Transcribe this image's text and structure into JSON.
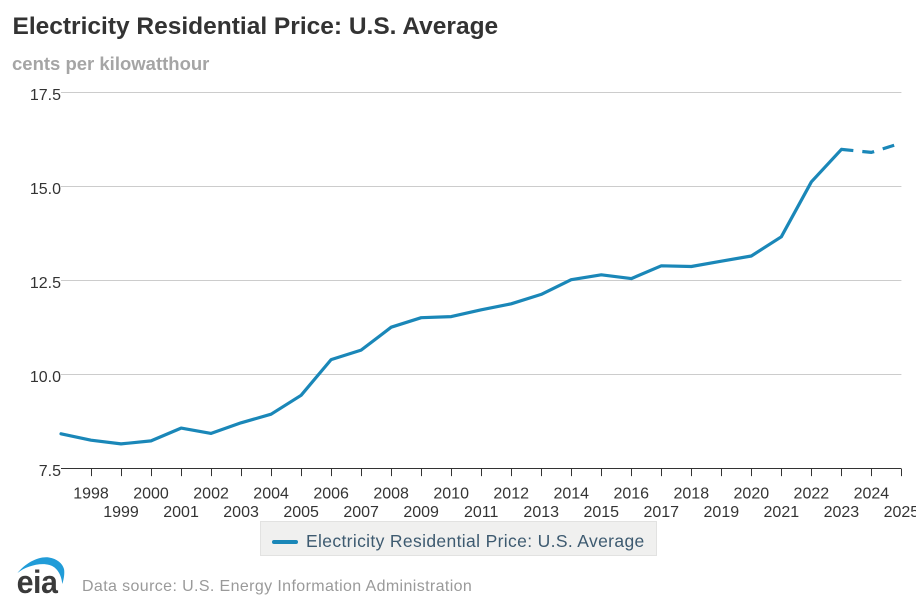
{
  "title": "Electricity Residential Price: U.S. Average",
  "subtitle": "cents per kilowatthour",
  "legend": {
    "label": "Electricity Residential Price: U.S. Average"
  },
  "footer": {
    "logo_text": "eia",
    "source_text": "Data source: U.S. Energy Information Administration"
  },
  "colors": {
    "line": "#1a87b8",
    "grid": "#cccccc",
    "axis": "#333333",
    "tick": "#333333",
    "axis_label": "#333333",
    "title": "#333333",
    "subtitle": "#a5a5a5",
    "legend_text": "#3d5a70",
    "legend_bg": "#f0f0ef",
    "legend_border": "#e2e2e1",
    "footer_text": "#9a9a9a",
    "logo_blue": "#219cd8",
    "logo_text": "#3a3a3a"
  },
  "chart_data": {
    "type": "line",
    "title": "Electricity Residential Price: U.S. Average",
    "xlabel": "",
    "ylabel": "cents per kilowatthour",
    "x": [
      1997,
      1998,
      1999,
      2000,
      2001,
      2002,
      2003,
      2004,
      2005,
      2006,
      2007,
      2008,
      2009,
      2010,
      2011,
      2012,
      2013,
      2014,
      2015,
      2016,
      2017,
      2018,
      2019,
      2020,
      2021,
      2022,
      2023,
      2024,
      2025
    ],
    "series": [
      {
        "name": "Electricity Residential Price: U.S. Average",
        "values": [
          8.43,
          8.26,
          8.16,
          8.24,
          8.58,
          8.44,
          8.72,
          8.95,
          9.45,
          10.4,
          10.65,
          11.26,
          11.51,
          11.54,
          11.72,
          11.88,
          12.13,
          12.52,
          12.65,
          12.55,
          12.89,
          12.87,
          13.01,
          13.15,
          13.66,
          15.12,
          15.98,
          15.9,
          16.15
        ],
        "dashed_from_x": 2023
      }
    ],
    "xlim": [
      1997,
      2025
    ],
    "ylim": [
      7.5,
      17.5
    ],
    "ytick_values": [
      7.5,
      10.0,
      12.5,
      15.0,
      17.5
    ],
    "ytick_labels": [
      "7.5",
      "10.0",
      "12.5",
      "15.0",
      "17.5"
    ],
    "xtick_values": [
      1998,
      1999,
      2000,
      2001,
      2002,
      2003,
      2004,
      2005,
      2006,
      2007,
      2008,
      2009,
      2010,
      2011,
      2012,
      2013,
      2014,
      2015,
      2016,
      2017,
      2018,
      2019,
      2020,
      2021,
      2022,
      2023,
      2024,
      2025
    ],
    "xtick_labels": [
      "1998",
      "1999",
      "2000",
      "2001",
      "2002",
      "2003",
      "2004",
      "2005",
      "2006",
      "2007",
      "2008",
      "2009",
      "2010",
      "2011",
      "2012",
      "2013",
      "2014",
      "2015",
      "2016",
      "2017",
      "2018",
      "2019",
      "2020",
      "2021",
      "2022",
      "2023",
      "2024",
      "2025"
    ],
    "grid": "horizontal",
    "legend_position": "bottom"
  }
}
